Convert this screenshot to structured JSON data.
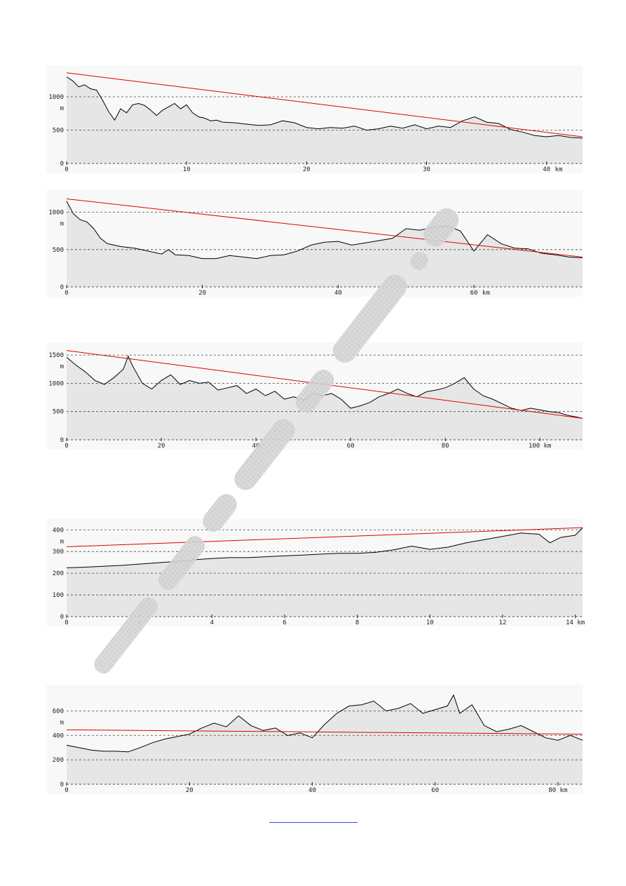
{
  "colors": {
    "panel_bg": "#f8f8f8",
    "terrain_fill": "#e6e6e6",
    "profile_line": "#000000",
    "sight_line": "#e00000",
    "grid": "#444444",
    "watermark": "#c8c8c8",
    "link": "#3344ff"
  },
  "chart_data": [
    {
      "type": "line",
      "id": "profile-1",
      "unit_y": "m",
      "unit_x": "km",
      "xlim": [
        0,
        43
      ],
      "ylim": [
        0,
        1400
      ],
      "x_ticks": [
        0,
        10,
        20,
        30,
        40
      ],
      "x_tick_labels": [
        "0",
        "10",
        "20",
        "30",
        "40"
      ],
      "y_ticks": [
        0,
        500,
        1000
      ],
      "y_tick_labels": [
        "0",
        "500",
        "1000"
      ],
      "curvature_max": 0,
      "sight_line": [
        [
          0,
          1360
        ],
        [
          43,
          400
        ]
      ],
      "series": [
        {
          "x": [
            0,
            0.5,
            1,
            1.5,
            2,
            2.5,
            3,
            3.5,
            4,
            4.5,
            5,
            5.5,
            6,
            6.5,
            7,
            7.5,
            8,
            8.5,
            9,
            9.5,
            10,
            10.5,
            11,
            11.5,
            12,
            12.5,
            13,
            14,
            15,
            16,
            17,
            18,
            19,
            20,
            21,
            22,
            23,
            24,
            25,
            26,
            27,
            28,
            29,
            30,
            31,
            32,
            33,
            34,
            35,
            36,
            37,
            38,
            39,
            40,
            41,
            42,
            43
          ],
          "values": [
            1300,
            1240,
            1150,
            1180,
            1120,
            1100,
            950,
            780,
            650,
            820,
            760,
            880,
            900,
            870,
            800,
            720,
            800,
            850,
            900,
            820,
            880,
            760,
            700,
            680,
            640,
            650,
            620,
            610,
            590,
            570,
            580,
            640,
            610,
            540,
            520,
            540,
            530,
            560,
            500,
            520,
            560,
            530,
            580,
            520,
            560,
            540,
            640,
            700,
            620,
            600,
            510,
            470,
            420,
            400,
            420,
            390,
            380
          ]
        }
      ]
    },
    {
      "type": "line",
      "id": "profile-2",
      "unit_y": "m",
      "unit_x": "km",
      "xlim": [
        0,
        76
      ],
      "ylim": [
        0,
        1250
      ],
      "x_ticks": [
        0,
        20,
        40,
        60
      ],
      "x_tick_labels": [
        "0",
        "20",
        "40",
        "60"
      ],
      "y_ticks": [
        0,
        500,
        1000
      ],
      "y_tick_labels": [
        "0",
        "500",
        "1000"
      ],
      "curvature_max": 100,
      "sight_line": [
        [
          0,
          1180
        ],
        [
          76,
          400
        ]
      ],
      "series": [
        {
          "x": [
            0,
            1,
            2,
            3,
            4,
            5,
            6,
            7,
            8,
            10,
            12,
            14,
            15,
            16,
            18,
            20,
            22,
            24,
            26,
            28,
            30,
            32,
            34,
            36,
            38,
            40,
            42,
            44,
            46,
            48,
            50,
            52,
            54,
            56,
            58,
            60,
            62,
            64,
            66,
            68,
            70,
            72,
            74,
            76
          ],
          "values": [
            1150,
            980,
            900,
            870,
            780,
            650,
            580,
            560,
            540,
            520,
            480,
            440,
            500,
            430,
            420,
            380,
            380,
            420,
            400,
            380,
            420,
            430,
            480,
            560,
            600,
            610,
            560,
            590,
            620,
            650,
            780,
            760,
            800,
            820,
            750,
            480,
            700,
            580,
            520,
            510,
            450,
            430,
            400,
            390
          ]
        }
      ]
    },
    {
      "type": "line",
      "id": "profile-3",
      "unit_y": "m",
      "unit_x": "km",
      "xlim": [
        0,
        109
      ],
      "ylim": [
        0,
        1650
      ],
      "x_ticks": [
        0,
        20,
        40,
        60,
        80,
        100
      ],
      "x_tick_labels": [
        "0",
        "20",
        "40",
        "60",
        "80",
        "100 km"
      ],
      "y_ticks": [
        0,
        500,
        1000,
        1500
      ],
      "y_tick_labels": [
        "0",
        "500",
        "1000",
        "1500"
      ],
      "curvature_max": 200,
      "sight_line": [
        [
          0,
          1580
        ],
        [
          109,
          380
        ]
      ],
      "series": [
        {
          "x": [
            0,
            2,
            4,
            6,
            8,
            10,
            12,
            13,
            14,
            16,
            18,
            20,
            22,
            24,
            26,
            28,
            30,
            32,
            34,
            36,
            38,
            40,
            42,
            44,
            46,
            48,
            50,
            52,
            54,
            56,
            58,
            60,
            62,
            64,
            66,
            68,
            70,
            72,
            74,
            76,
            78,
            80,
            82,
            84,
            86,
            88,
            90,
            92,
            94,
            96,
            98,
            100,
            102,
            104,
            106,
            108,
            109
          ],
          "values": [
            1460,
            1320,
            1200,
            1050,
            980,
            1100,
            1250,
            1480,
            1300,
            1000,
            900,
            1050,
            1150,
            980,
            1050,
            1000,
            1020,
            880,
            920,
            960,
            820,
            900,
            780,
            860,
            720,
            760,
            700,
            820,
            780,
            820,
            720,
            560,
            600,
            660,
            760,
            820,
            900,
            820,
            760,
            850,
            880,
            920,
            1000,
            1100,
            900,
            780,
            720,
            640,
            560,
            520,
            560,
            530,
            500,
            480,
            430,
            400,
            380
          ]
        }
      ]
    },
    {
      "type": "line",
      "id": "profile-4",
      "unit_y": "m",
      "unit_x": "km",
      "xlim": [
        0,
        14.2
      ],
      "ylim": [
        0,
        430
      ],
      "x_ticks": [
        0,
        2,
        4,
        6,
        8,
        10,
        12,
        14
      ],
      "x_tick_labels": [
        "0",
        "2",
        "4",
        "6",
        "8",
        "10",
        "12",
        "14 km"
      ],
      "y_ticks": [
        0,
        100,
        200,
        300,
        400
      ],
      "y_tick_labels": [
        "0",
        "100",
        "200",
        "300",
        "400"
      ],
      "curvature_max": 0,
      "sight_line": [
        [
          0,
          322
        ],
        [
          14.2,
          410
        ]
      ],
      "series": [
        {
          "x": [
            0,
            0.5,
            1,
            1.5,
            2,
            2.5,
            3,
            3.5,
            4,
            4.5,
            5,
            5.5,
            6,
            6.5,
            7,
            7.5,
            8,
            8.5,
            9,
            9.5,
            10,
            10.5,
            11,
            11.5,
            12,
            12.5,
            13,
            13.3,
            13.6,
            14,
            14.2
          ],
          "values": [
            225,
            228,
            232,
            236,
            242,
            248,
            254,
            262,
            268,
            272,
            272,
            276,
            280,
            284,
            288,
            292,
            292,
            296,
            308,
            325,
            310,
            320,
            340,
            355,
            370,
            385,
            380,
            340,
            365,
            375,
            410
          ]
        }
      ]
    },
    {
      "type": "line",
      "id": "profile-5",
      "unit_y": "m",
      "unit_x": "km",
      "xlim": [
        0,
        84
      ],
      "ylim": [
        0,
        780
      ],
      "x_ticks": [
        0,
        20,
        40,
        60,
        80
      ],
      "x_tick_labels": [
        "0",
        "20",
        "40",
        "60",
        "80 km"
      ],
      "y_ticks": [
        0,
        200,
        400,
        600
      ],
      "y_tick_labels": [
        "0",
        "200",
        "400",
        "600"
      ],
      "curvature_max": 120,
      "sight_line": [
        [
          0,
          445
        ],
        [
          84,
          410
        ]
      ],
      "series": [
        {
          "x": [
            0,
            2,
            4,
            6,
            8,
            10,
            12,
            14,
            16,
            18,
            20,
            22,
            24,
            26,
            28,
            30,
            32,
            34,
            36,
            38,
            40,
            42,
            44,
            46,
            48,
            50,
            52,
            54,
            56,
            58,
            60,
            62,
            63,
            64,
            66,
            68,
            70,
            72,
            74,
            76,
            78,
            80,
            82,
            84
          ],
          "values": [
            320,
            300,
            280,
            270,
            270,
            265,
            300,
            340,
            370,
            390,
            410,
            460,
            500,
            470,
            560,
            480,
            440,
            460,
            400,
            420,
            380,
            490,
            580,
            640,
            650,
            680,
            600,
            620,
            660,
            580,
            610,
            640,
            730,
            580,
            650,
            480,
            430,
            450,
            480,
            430,
            380,
            360,
            400,
            360
          ]
        }
      ]
    }
  ]
}
